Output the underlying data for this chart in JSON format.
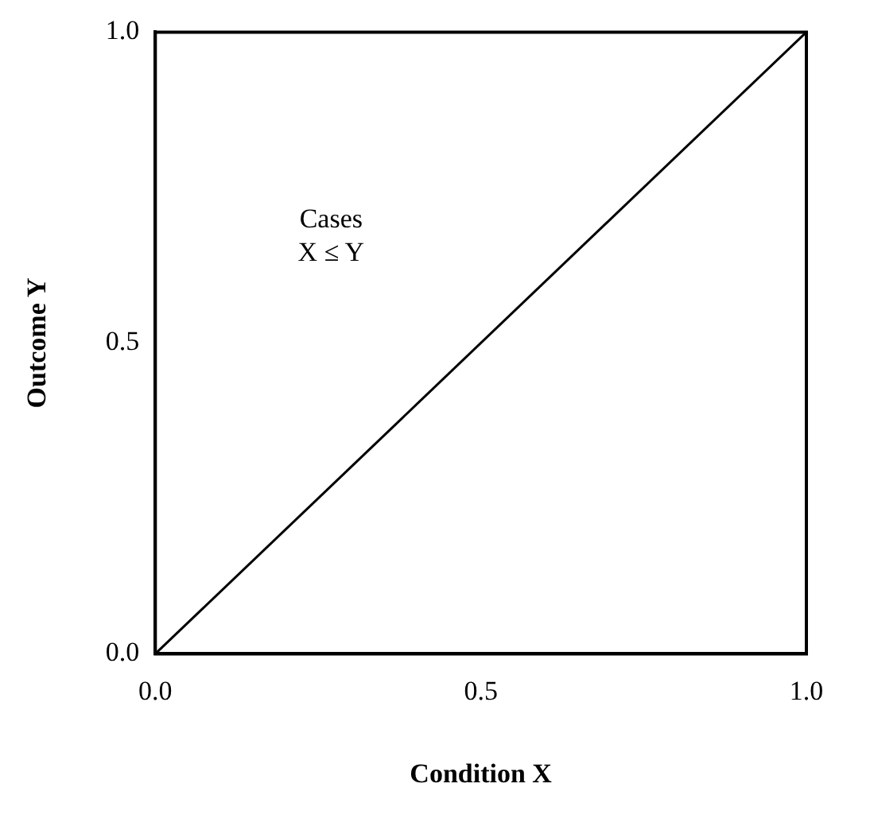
{
  "chart_data": {
    "type": "line",
    "xlabel": "Condition X",
    "ylabel": "Outcome Y",
    "x": [
      0,
      1
    ],
    "series": [
      {
        "color": "#000000",
        "values": [
          0,
          1
        ]
      }
    ],
    "xlim": [
      0,
      1
    ],
    "ylim": [
      0,
      1
    ],
    "xticks": [
      {
        "value": 0,
        "label": "0.0"
      },
      {
        "value": 0.5,
        "label": "0.5"
      },
      {
        "value": 1,
        "label": "1.0"
      }
    ],
    "yticks": [
      {
        "value": 0,
        "label": "0.0"
      },
      {
        "value": 0.5,
        "label": "0.5"
      },
      {
        "value": 1,
        "label": "1.0"
      }
    ],
    "annotations": [
      "Cases\nX ≤ Y"
    ],
    "grid": false,
    "legend": false,
    "marker": "none",
    "line_style": "solid"
  }
}
